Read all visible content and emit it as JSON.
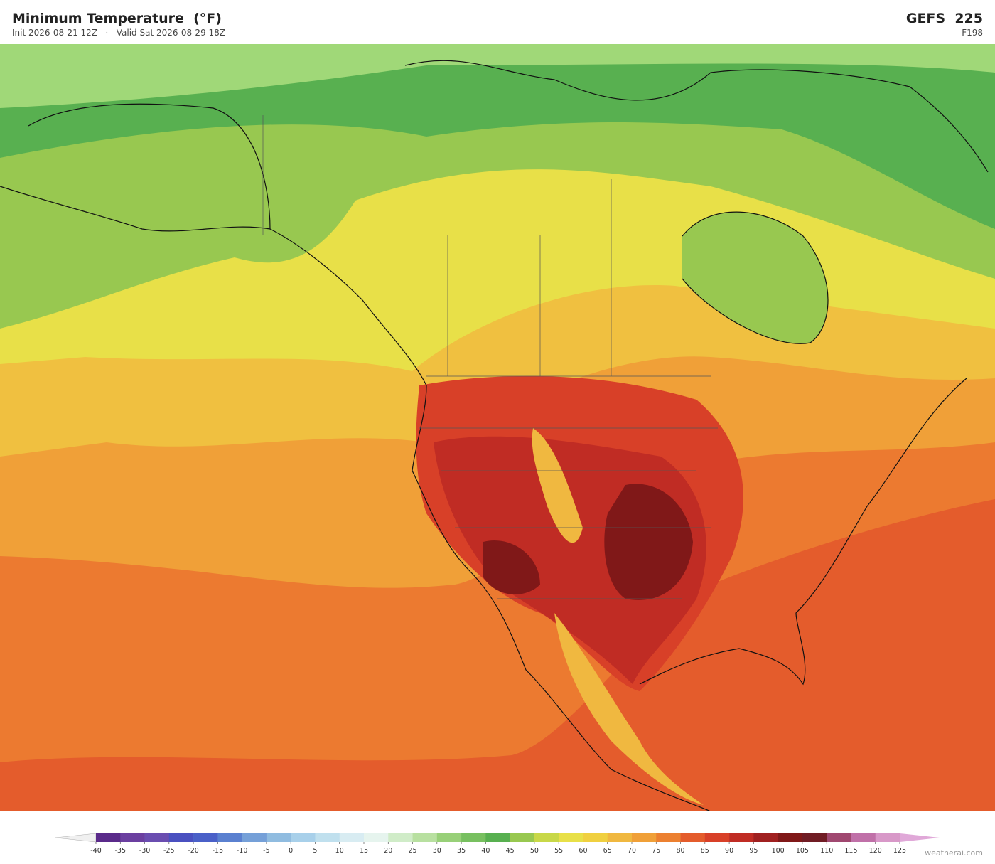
{
  "header": {
    "title": "Minimum Temperature  (°F)",
    "subtitle": "Init 2026-08-21 12Z   ·   Valid Sat 2026-08-29 18Z",
    "model": "GEFS  225",
    "forecast_hour": "F198"
  },
  "legend": {
    "ticks": [
      -40,
      -35,
      -30,
      -25,
      -20,
      -15,
      -10,
      -5,
      0,
      5,
      10,
      15,
      20,
      25,
      30,
      35,
      40,
      45,
      50,
      55,
      60,
      65,
      70,
      75,
      80,
      85,
      90,
      95,
      100,
      105,
      110,
      115,
      120,
      125
    ],
    "colors": [
      "#5a2a8a",
      "#6b3fa0",
      "#6a4db0",
      "#4a50c0",
      "#4a60c8",
      "#5a80d0",
      "#75a0d8",
      "#90bce0",
      "#a8d0ea",
      "#c0e0ee",
      "#d8ecf2",
      "#e6f4ee",
      "#d0ecc8",
      "#b8e0a0",
      "#98d078",
      "#78c060",
      "#58b050",
      "#98c850",
      "#c8d848",
      "#e8e048",
      "#f0d040",
      "#f0b840",
      "#f0a038",
      "#ec8030",
      "#e45c2c",
      "#d84028",
      "#c02c24",
      "#a02020",
      "#801818",
      "#701c24",
      "#a04870",
      "#c070a8",
      "#d898c8"
    ],
    "under_color": "#f0f0f0",
    "over_color": "#e0a8d8"
  },
  "watermark": "weatherai.com"
}
